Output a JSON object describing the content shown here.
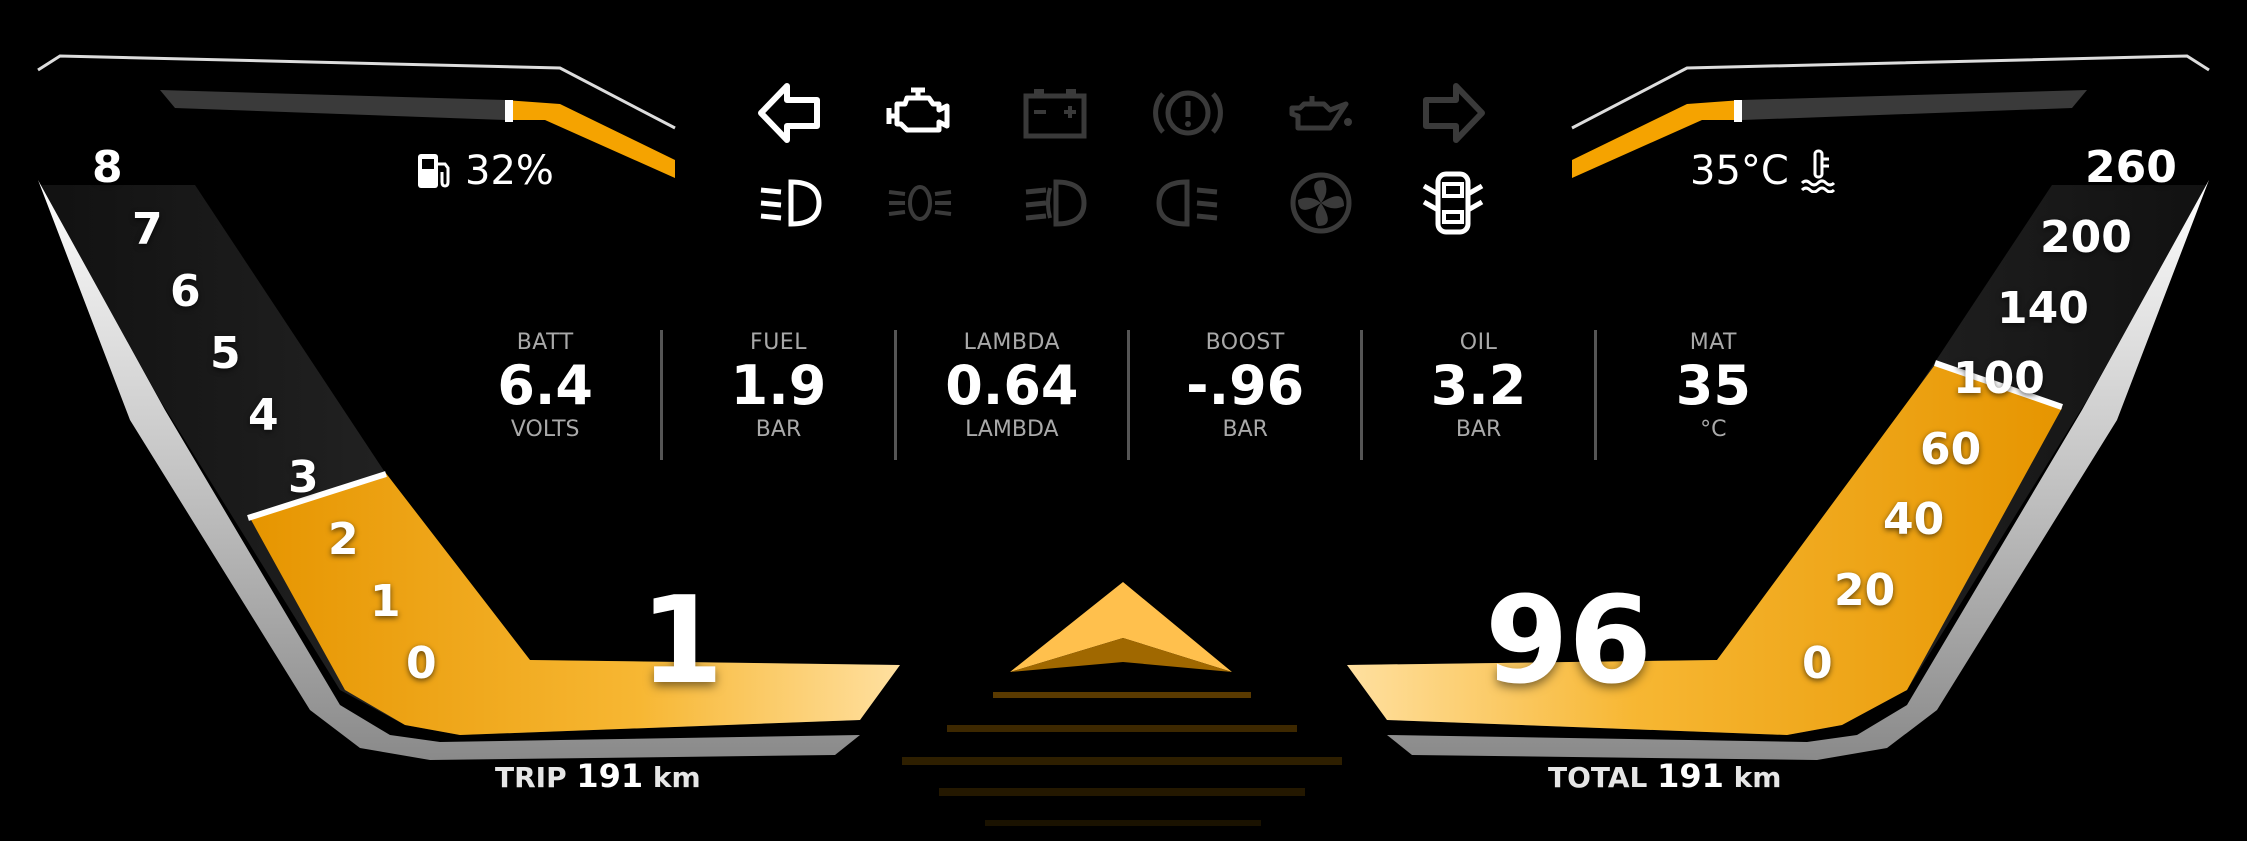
{
  "fuel": {
    "icon": "fuel-pump-icon",
    "level_text": "32%",
    "level_fraction": 0.32
  },
  "coolant": {
    "icon": "coolant-temp-icon",
    "temp_text": "35°C"
  },
  "tachometer": {
    "ticks": [
      "8",
      "7",
      "6",
      "5",
      "4",
      "3",
      "2",
      "1",
      "0"
    ],
    "value": 2.8
  },
  "speedometer": {
    "ticks": [
      "260",
      "200",
      "140",
      "100",
      "60",
      "40",
      "20",
      "0"
    ],
    "value": 96
  },
  "gear": "1",
  "speed": "96",
  "trip": {
    "label": "TRIP",
    "value": "191",
    "unit": "km"
  },
  "total": {
    "label": "TOTAL",
    "value": "191",
    "unit": "km"
  },
  "metrics": [
    {
      "name": "BATT",
      "value": "6.4",
      "unit": "VOLTS"
    },
    {
      "name": "FUEL",
      "value": "1.9",
      "unit": "BAR"
    },
    {
      "name": "LAMBDA",
      "value": "0.64",
      "unit": "LAMBDA"
    },
    {
      "name": "BOOST",
      "value": "-.96",
      "unit": "BAR"
    },
    {
      "name": "OIL",
      "value": "3.2",
      "unit": "BAR"
    },
    {
      "name": "MAT",
      "value": "35",
      "unit": "°C"
    }
  ],
  "warning_lights": [
    {
      "icon": "left-turn-signal-icon",
      "active": true
    },
    {
      "icon": "check-engine-icon",
      "active": true
    },
    {
      "icon": "battery-icon",
      "active": false
    },
    {
      "icon": "brake-warning-icon",
      "active": false
    },
    {
      "icon": "oil-pressure-icon",
      "active": false
    },
    {
      "icon": "right-turn-signal-icon",
      "active": false
    },
    {
      "icon": "low-beam-icon",
      "active": true
    },
    {
      "icon": "fog-light-icon",
      "active": false
    },
    {
      "icon": "front-fog-icon",
      "active": false
    },
    {
      "icon": "rear-fog-icon",
      "active": false
    },
    {
      "icon": "fan-icon",
      "active": false
    },
    {
      "icon": "door-open-icon",
      "active": true
    }
  ],
  "colors": {
    "accent": "#f5a300",
    "accent_light": "#ffd47a",
    "inactive": "#3a3a3a",
    "active": "#ffffff"
  }
}
